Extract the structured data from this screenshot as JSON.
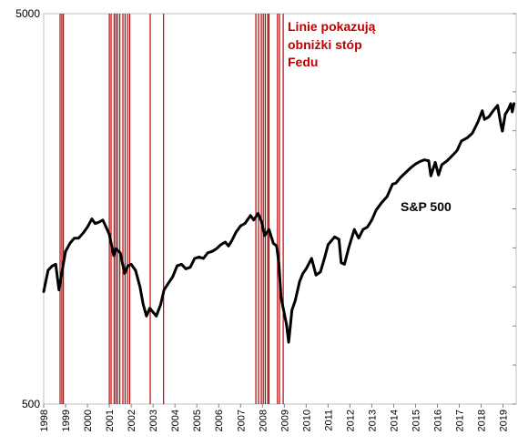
{
  "chart_data": {
    "type": "line",
    "yscale": "log",
    "ylim": [
      500,
      5000
    ],
    "xlim": [
      1998.0,
      2019.6
    ],
    "yticks": [
      {
        "value": 5000,
        "label": "5000"
      },
      {
        "value": 500,
        "label": "500"
      }
    ],
    "xticks": [
      {
        "value": 1998,
        "label": "1998"
      },
      {
        "value": 1999,
        "label": "1999"
      },
      {
        "value": 2000,
        "label": "2000"
      },
      {
        "value": 2001,
        "label": "2001"
      },
      {
        "value": 2002,
        "label": "2002"
      },
      {
        "value": 2003,
        "label": "2003"
      },
      {
        "value": 2004,
        "label": "2004"
      },
      {
        "value": 2005,
        "label": "2005"
      },
      {
        "value": 2006,
        "label": "2006"
      },
      {
        "value": 2007,
        "label": "2007"
      },
      {
        "value": 2008,
        "label": "2008"
      },
      {
        "value": 2009,
        "label": "2009"
      },
      {
        "value": 2010,
        "label": "2010"
      },
      {
        "value": 2011,
        "label": "2011"
      },
      {
        "value": 2012,
        "label": "2012"
      },
      {
        "value": 2013,
        "label": "2013"
      },
      {
        "value": 2014,
        "label": "2014"
      },
      {
        "value": 2015,
        "label": "2015"
      },
      {
        "value": 2016,
        "label": "2016"
      },
      {
        "value": 2017,
        "label": "2017"
      },
      {
        "value": 2018,
        "label": "2018"
      },
      {
        "value": 2019,
        "label": "2019"
      }
    ],
    "series": [
      {
        "name": "S&P 500",
        "color": "#000000",
        "points": [
          [
            1998.0,
            970
          ],
          [
            1998.2,
            1100
          ],
          [
            1998.4,
            1130
          ],
          [
            1998.55,
            1140
          ],
          [
            1998.7,
            980
          ],
          [
            1998.85,
            1100
          ],
          [
            1999.0,
            1230
          ],
          [
            1999.2,
            1290
          ],
          [
            1999.4,
            1330
          ],
          [
            1999.6,
            1330
          ],
          [
            1999.8,
            1370
          ],
          [
            2000.0,
            1420
          ],
          [
            2000.2,
            1490
          ],
          [
            2000.35,
            1450
          ],
          [
            2000.5,
            1460
          ],
          [
            2000.7,
            1480
          ],
          [
            2000.85,
            1420
          ],
          [
            2001.0,
            1360
          ],
          [
            2001.2,
            1200
          ],
          [
            2001.3,
            1250
          ],
          [
            2001.5,
            1220
          ],
          [
            2001.7,
            1080
          ],
          [
            2001.85,
            1130
          ],
          [
            2002.0,
            1140
          ],
          [
            2002.2,
            1100
          ],
          [
            2002.4,
            1000
          ],
          [
            2002.55,
            900
          ],
          [
            2002.7,
            840
          ],
          [
            2002.85,
            880
          ],
          [
            2003.0,
            860
          ],
          [
            2003.15,
            840
          ],
          [
            2003.35,
            900
          ],
          [
            2003.5,
            980
          ],
          [
            2003.7,
            1020
          ],
          [
            2003.9,
            1060
          ],
          [
            2004.1,
            1130
          ],
          [
            2004.3,
            1140
          ],
          [
            2004.5,
            1110
          ],
          [
            2004.7,
            1120
          ],
          [
            2004.9,
            1180
          ],
          [
            2005.1,
            1190
          ],
          [
            2005.3,
            1180
          ],
          [
            2005.5,
            1220
          ],
          [
            2005.7,
            1230
          ],
          [
            2005.9,
            1250
          ],
          [
            2006.1,
            1280
          ],
          [
            2006.3,
            1300
          ],
          [
            2006.45,
            1270
          ],
          [
            2006.6,
            1310
          ],
          [
            2006.8,
            1380
          ],
          [
            2007.0,
            1430
          ],
          [
            2007.2,
            1450
          ],
          [
            2007.45,
            1520
          ],
          [
            2007.6,
            1480
          ],
          [
            2007.8,
            1540
          ],
          [
            2007.95,
            1470
          ],
          [
            2008.1,
            1350
          ],
          [
            2008.3,
            1400
          ],
          [
            2008.5,
            1290
          ],
          [
            2008.65,
            1270
          ],
          [
            2008.75,
            1150
          ],
          [
            2008.85,
            940
          ],
          [
            2008.95,
            880
          ],
          [
            2009.1,
            800
          ],
          [
            2009.2,
            720
          ],
          [
            2009.35,
            870
          ],
          [
            2009.5,
            920
          ],
          [
            2009.7,
            1030
          ],
          [
            2009.85,
            1080
          ],
          [
            2010.0,
            1110
          ],
          [
            2010.25,
            1180
          ],
          [
            2010.45,
            1070
          ],
          [
            2010.65,
            1090
          ],
          [
            2010.85,
            1190
          ],
          [
            2011.0,
            1280
          ],
          [
            2011.3,
            1340
          ],
          [
            2011.5,
            1320
          ],
          [
            2011.6,
            1150
          ],
          [
            2011.75,
            1140
          ],
          [
            2011.95,
            1260
          ],
          [
            2012.2,
            1400
          ],
          [
            2012.4,
            1330
          ],
          [
            2012.6,
            1400
          ],
          [
            2012.8,
            1420
          ],
          [
            2013.0,
            1480
          ],
          [
            2013.2,
            1570
          ],
          [
            2013.45,
            1640
          ],
          [
            2013.7,
            1700
          ],
          [
            2013.95,
            1830
          ],
          [
            2014.1,
            1840
          ],
          [
            2014.3,
            1900
          ],
          [
            2014.55,
            1960
          ],
          [
            2014.8,
            2020
          ],
          [
            2015.0,
            2060
          ],
          [
            2015.2,
            2090
          ],
          [
            2015.4,
            2110
          ],
          [
            2015.6,
            2100
          ],
          [
            2015.7,
            1920
          ],
          [
            2015.9,
            2080
          ],
          [
            2016.05,
            1930
          ],
          [
            2016.2,
            2050
          ],
          [
            2016.45,
            2100
          ],
          [
            2016.7,
            2170
          ],
          [
            2016.9,
            2230
          ],
          [
            2017.1,
            2360
          ],
          [
            2017.35,
            2400
          ],
          [
            2017.6,
            2470
          ],
          [
            2017.85,
            2640
          ],
          [
            2018.05,
            2820
          ],
          [
            2018.15,
            2680
          ],
          [
            2018.35,
            2720
          ],
          [
            2018.55,
            2820
          ],
          [
            2018.75,
            2910
          ],
          [
            2018.9,
            2600
          ],
          [
            2018.97,
            2500
          ],
          [
            2019.1,
            2760
          ],
          [
            2019.25,
            2850
          ],
          [
            2019.35,
            2940
          ],
          [
            2019.42,
            2800
          ],
          [
            2019.5,
            2940
          ]
        ]
      }
    ],
    "vlines": {
      "color": "#c00000",
      "dates": [
        1998.75,
        1998.83,
        1998.9,
        2001.0,
        2001.08,
        2001.22,
        2001.3,
        2001.38,
        2001.48,
        2001.62,
        2001.72,
        2001.83,
        2001.93,
        2002.87,
        2003.48,
        2007.7,
        2007.82,
        2007.95,
        2008.04,
        2008.13,
        2008.24,
        2008.3,
        2008.69,
        2008.78,
        2008.95
      ]
    },
    "annotations": {
      "series_label": "S&P 500",
      "note_lines": [
        "Linie pokazują",
        "obniżki stóp",
        "Fedu"
      ],
      "note_color": "#c00000"
    }
  }
}
